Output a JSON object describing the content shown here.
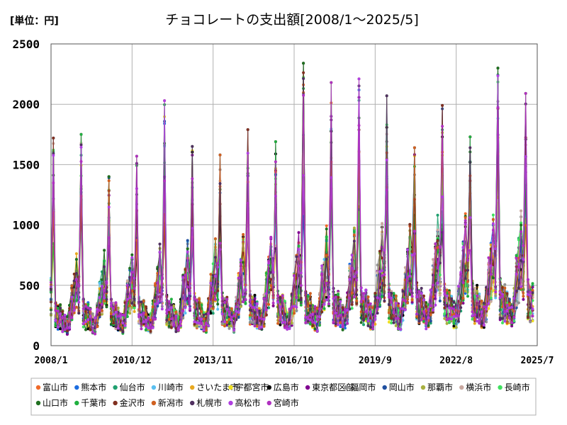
{
  "chart_data": {
    "type": "line",
    "title": "チョコレートの支出額[2008/1～2025/5]",
    "unit_label": "[単位：円]",
    "xlabel": "",
    "ylabel": "",
    "ylim": [
      0,
      2500
    ],
    "yticks": [
      0,
      500,
      1000,
      1500,
      2000,
      2500
    ],
    "xlim": [
      "2008/1",
      "2025/7"
    ],
    "xticks": [
      "2008/1",
      "2010/12",
      "2013/11",
      "2016/10",
      "2019/9",
      "2022/8",
      "2025/7"
    ],
    "grid": true,
    "legend_position": "bottom",
    "series": [
      {
        "name": "富山市",
        "color": "#f06a2a"
      },
      {
        "name": "熊本市",
        "color": "#1c6de0"
      },
      {
        "name": "仙台市",
        "color": "#20a070"
      },
      {
        "name": "川崎市",
        "color": "#5bc0f0"
      },
      {
        "name": "さいたま市",
        "color": "#e8a820"
      },
      {
        "name": "宇都宮市",
        "color": "#f0e020"
      },
      {
        "name": "広島市",
        "color": "#000000"
      },
      {
        "name": "東京都区部",
        "color": "#800090"
      },
      {
        "name": "福岡市",
        "color": "#909090"
      },
      {
        "name": "岡山市",
        "color": "#2050a0"
      },
      {
        "name": "那覇市",
        "color": "#a8b040"
      },
      {
        "name": "横浜市",
        "color": "#c8a8a0"
      },
      {
        "name": "長崎市",
        "color": "#40e060"
      },
      {
        "name": "山口市",
        "color": "#207020"
      },
      {
        "name": "千葉市",
        "color": "#20b040"
      },
      {
        "name": "金沢市",
        "color": "#803020"
      },
      {
        "name": "新潟市",
        "color": "#d06020"
      },
      {
        "name": "札幌市",
        "color": "#503060"
      },
      {
        "name": "高松市",
        "color": "#b040e0"
      },
      {
        "name": "宮崎市",
        "color": "#b030c0"
      }
    ],
    "february_peaks": [
      {
        "year": 2008,
        "value": 1720
      },
      {
        "year": 2009,
        "value": 1750
      },
      {
        "year": 2010,
        "value": 1400
      },
      {
        "year": 2011,
        "value": 1570
      },
      {
        "year": 2012,
        "value": 2030
      },
      {
        "year": 2013,
        "value": 1650
      },
      {
        "year": 2014,
        "value": 1580
      },
      {
        "year": 2015,
        "value": 1790
      },
      {
        "year": 2016,
        "value": 1690
      },
      {
        "year": 2017,
        "value": 2340
      },
      {
        "year": 2018,
        "value": 2180
      },
      {
        "year": 2019,
        "value": 2210
      },
      {
        "year": 2020,
        "value": 2070
      },
      {
        "year": 2021,
        "value": 1640
      },
      {
        "year": 2022,
        "value": 1990
      },
      {
        "year": 2023,
        "value": 1730
      },
      {
        "year": 2024,
        "value": 2300
      },
      {
        "year": 2025,
        "value": 2090
      }
    ],
    "typical_range_non_february": [
      100,
      800
    ]
  }
}
